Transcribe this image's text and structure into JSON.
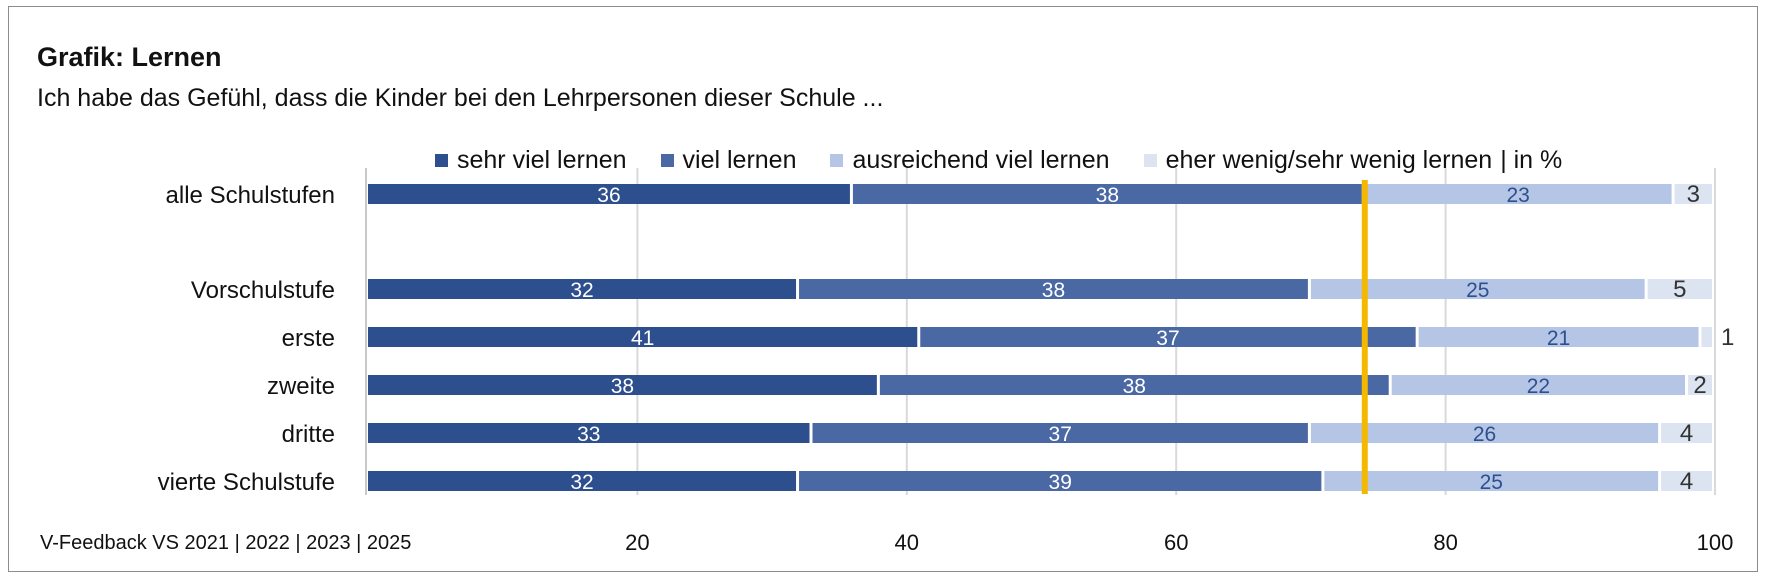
{
  "title": "Grafik: Lernen",
  "subtitle": "Ich habe das Gefühl, dass die Kinder bei den Lehrpersonen dieser Schule ...",
  "source": "V-Feedback VS 2021 | 2022 | 2023 | 2025",
  "legend_suffix": "| in %",
  "chart_data": {
    "type": "bar",
    "orientation": "horizontal",
    "stacked": true,
    "categories": [
      "alle Schulstufen",
      "Vorschulstufe",
      "erste",
      "zweite",
      "dritte",
      "vierte Schulstufe"
    ],
    "series": [
      {
        "name": "sehr viel lernen",
        "color": "#2e4f8e",
        "label_color": "#ffffff",
        "values": [
          36,
          32,
          41,
          38,
          33,
          32
        ]
      },
      {
        "name": "viel lernen",
        "color": "#4a68a3",
        "label_color": "#ffffff",
        "values": [
          38,
          38,
          37,
          38,
          37,
          39
        ]
      },
      {
        "name": "ausreichend viel lernen",
        "color": "#b4c5e6",
        "label_color": "#2e4f8e",
        "values": [
          23,
          25,
          21,
          22,
          26,
          25
        ]
      },
      {
        "name": "eher wenig/sehr wenig lernen",
        "color": "#dce4f2",
        "label_color": "#333333",
        "values": [
          3,
          5,
          1,
          2,
          4,
          4
        ]
      }
    ],
    "xlim": [
      0,
      100
    ],
    "xticks": [
      20,
      40,
      60,
      80,
      100
    ],
    "reference_line": {
      "value": 74,
      "color": "#f5b800"
    },
    "legend_position": "top",
    "grid": true
  }
}
